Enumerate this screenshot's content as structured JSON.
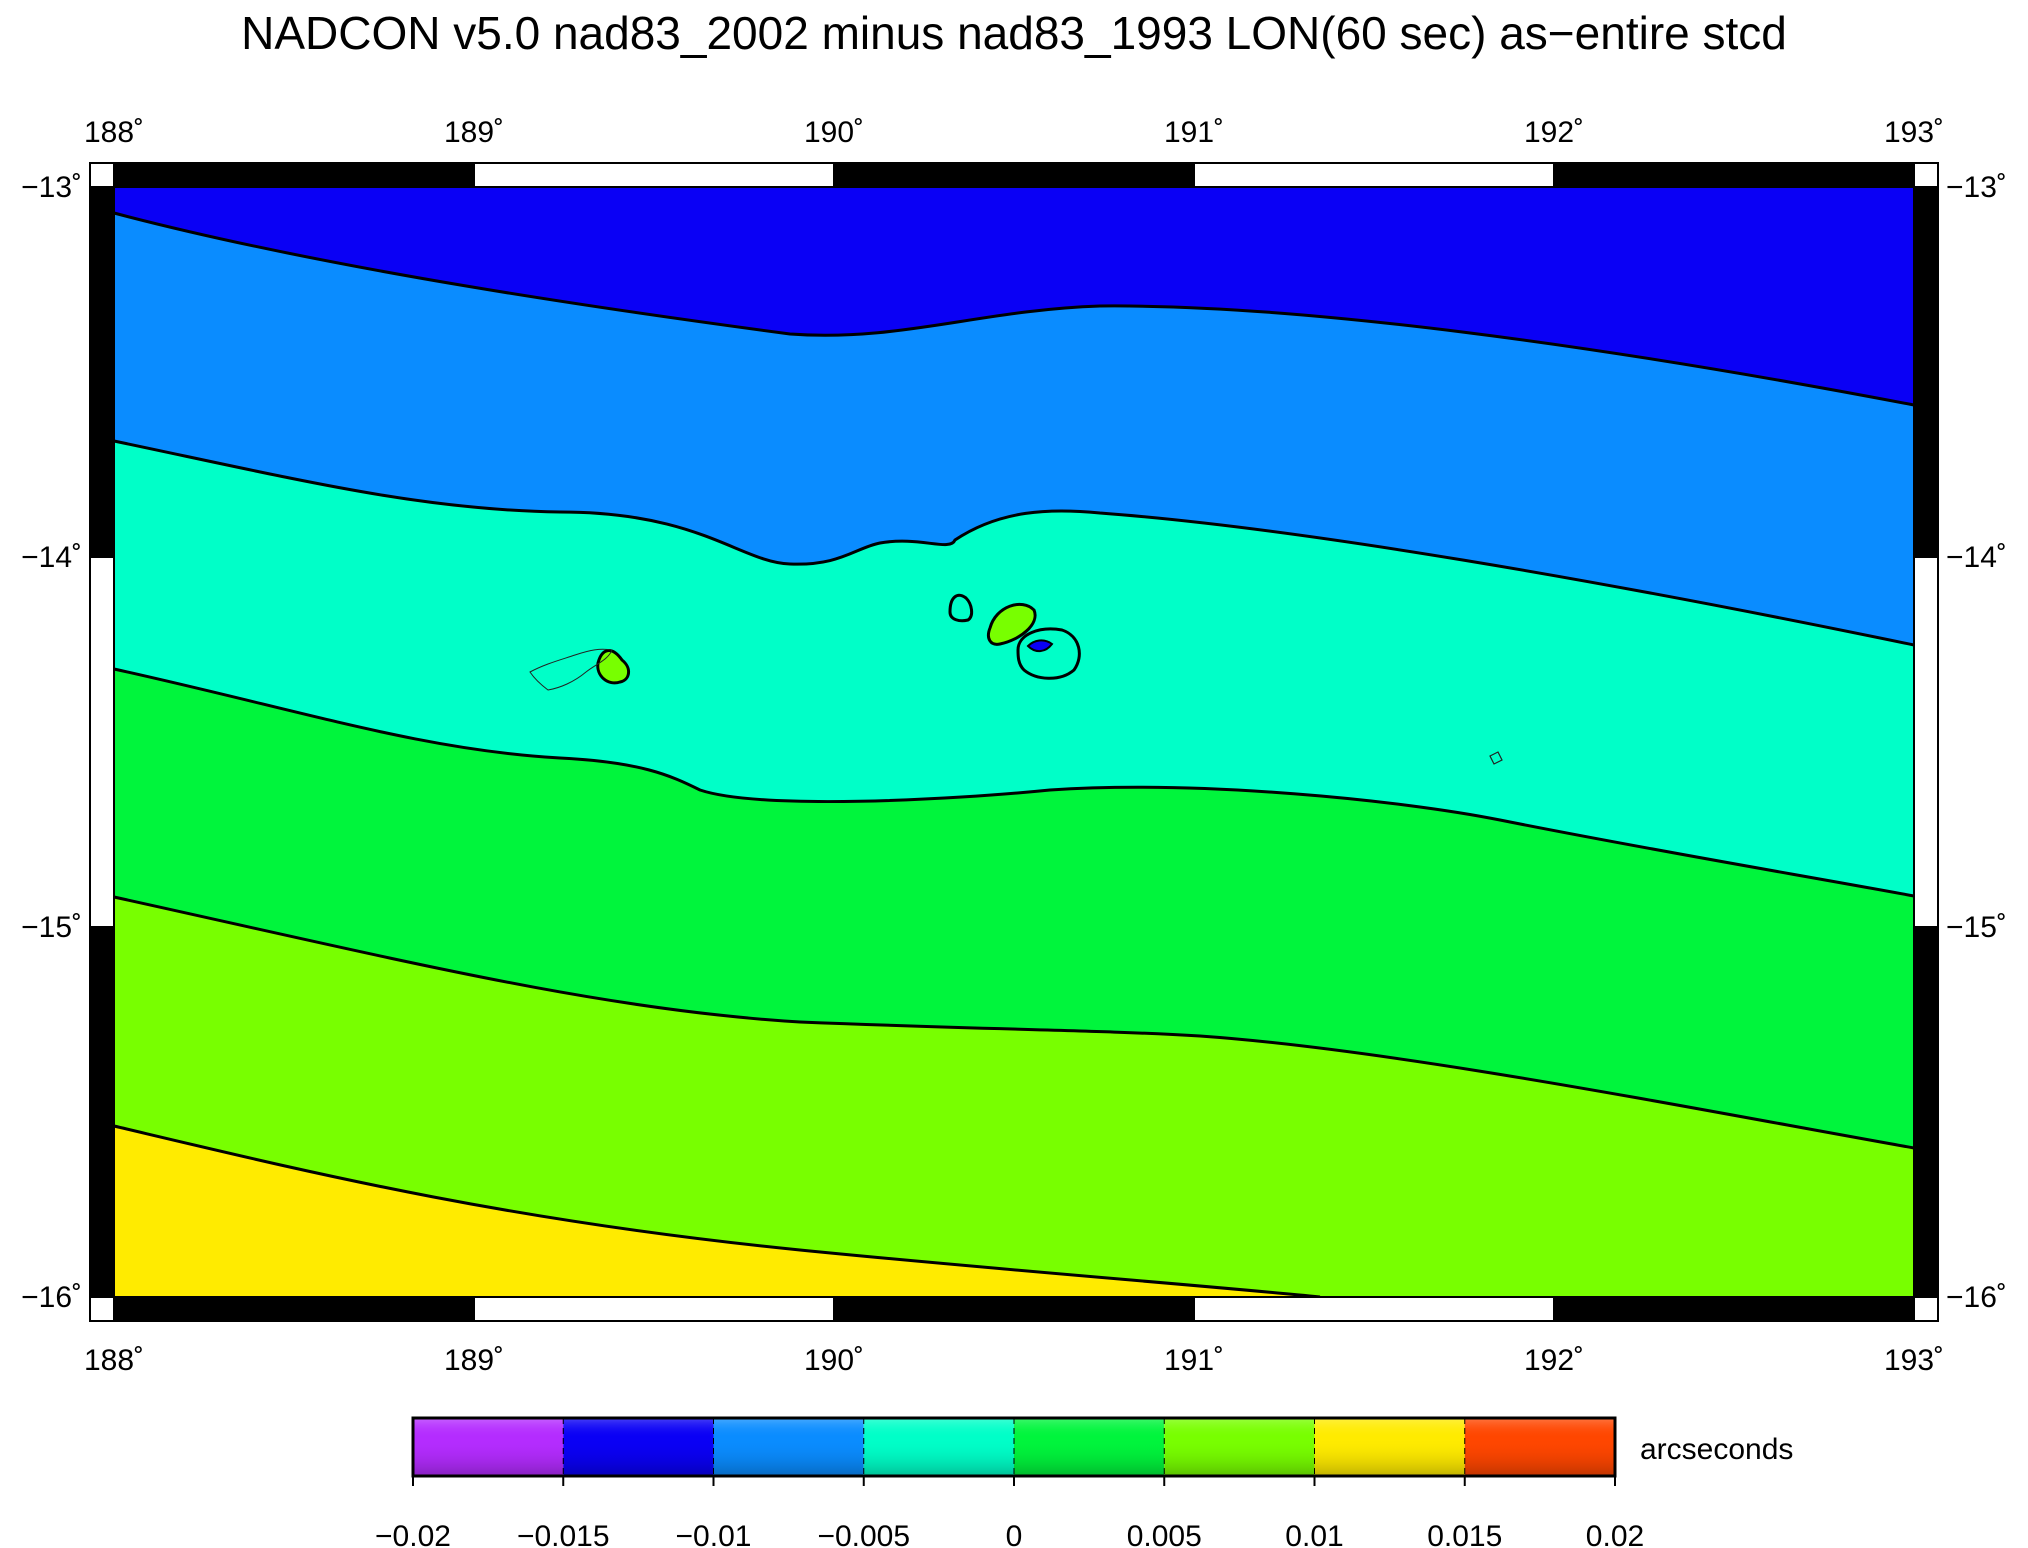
{
  "title": "NADCON v5.0 nad83_2002 minus nad83_1993 LON(60 sec) as−entire stcd",
  "map": {
    "x_ticks": [
      {
        "value": 188,
        "label": "188˚"
      },
      {
        "value": 189,
        "label": "189˚"
      },
      {
        "value": 190,
        "label": "190˚"
      },
      {
        "value": 191,
        "label": "191˚"
      },
      {
        "value": 192,
        "label": "192˚"
      },
      {
        "value": 193,
        "label": "193˚"
      }
    ],
    "y_ticks": [
      {
        "value": -13,
        "label": "−13˚"
      },
      {
        "value": -14,
        "label": "−14˚"
      },
      {
        "value": -15,
        "label": "−15˚"
      },
      {
        "value": -16,
        "label": "−16˚"
      }
    ],
    "lon_range": [
      188,
      193
    ],
    "lat_range": [
      -16,
      -13
    ],
    "band_colors": [
      "#0a00f5",
      "#0a8cff",
      "#00ffc8",
      "#00f53c",
      "#78ff00",
      "#ffeb00"
    ],
    "contour_color": "#000000"
  },
  "colorbar": {
    "unit_label": "arcseconds",
    "colors": [
      "#b42cff",
      "#0a00f5",
      "#0a8cff",
      "#00ffc8",
      "#00f53c",
      "#78ff00",
      "#ffeb00",
      "#ff4600"
    ],
    "tick_labels": [
      "−0.02",
      "−0.015",
      "−0.01",
      "−0.005",
      "0",
      "0.005",
      "0.01",
      "0.015",
      "0.02"
    ]
  }
}
